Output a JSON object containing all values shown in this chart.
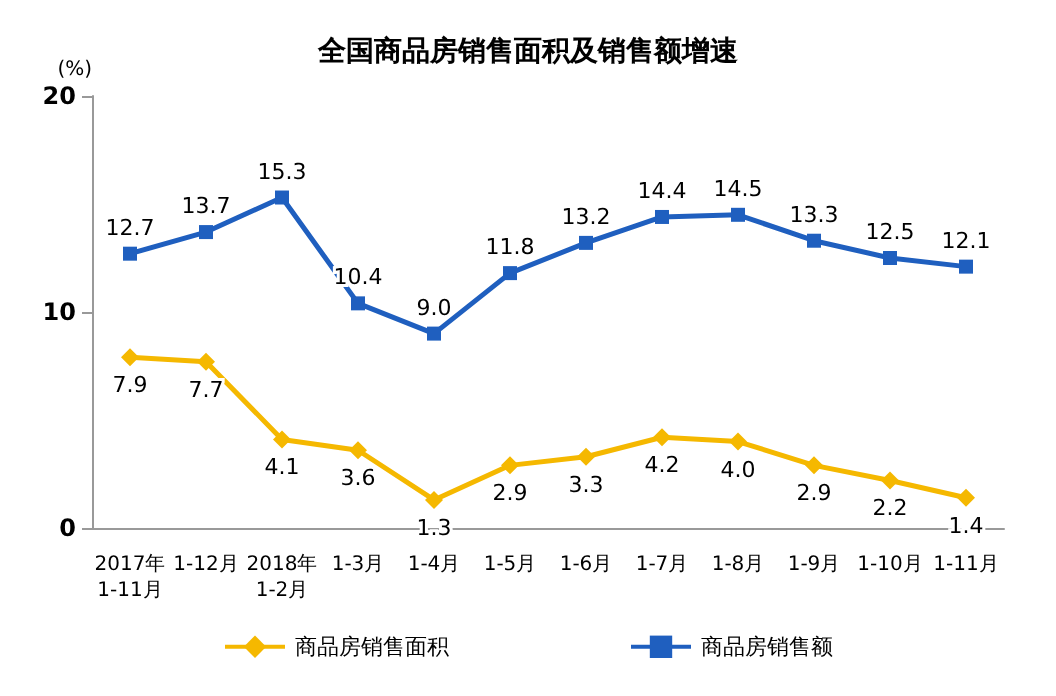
{
  "chart_data": {
    "type": "line",
    "title": "全国商品房销售面积及销售额增速",
    "ylabel": "(%)",
    "categories": [
      "2017年\n1-11月",
      "1-12月",
      "2018年\n1-2月",
      "1-3月",
      "1-4月",
      "1-5月",
      "1-6月",
      "1-7月",
      "1-8月",
      "1-9月",
      "1-10月",
      "1-11月"
    ],
    "series": [
      {
        "name": "商品房销售面积",
        "color": "#f5b800",
        "marker": "diamond",
        "values": [
          7.9,
          7.7,
          4.1,
          3.6,
          1.3,
          2.9,
          3.3,
          4.2,
          4.0,
          2.9,
          2.2,
          1.4
        ],
        "value_labels": [
          "7.9",
          "7.7",
          "4.1",
          "3.6",
          "1.3",
          "2.9",
          "3.3",
          "4.2",
          "4.0",
          "2.9",
          "2.2",
          "1.4"
        ]
      },
      {
        "name": "商品房销售额",
        "color": "#1f5fbf",
        "marker": "square",
        "values": [
          12.7,
          13.7,
          15.3,
          10.4,
          9.0,
          11.8,
          13.2,
          14.4,
          14.5,
          13.3,
          12.5,
          12.1
        ],
        "value_labels": [
          "12.7",
          "13.7",
          "15.3",
          "10.4",
          "9.0",
          "11.8",
          "13.2",
          "14.4",
          "14.5",
          "13.3",
          "12.5",
          "12.1"
        ]
      }
    ],
    "ylim": [
      0,
      20
    ],
    "yticks": [
      0,
      10,
      20
    ],
    "grid": false,
    "legend": "bottom",
    "line_style": "solid"
  }
}
